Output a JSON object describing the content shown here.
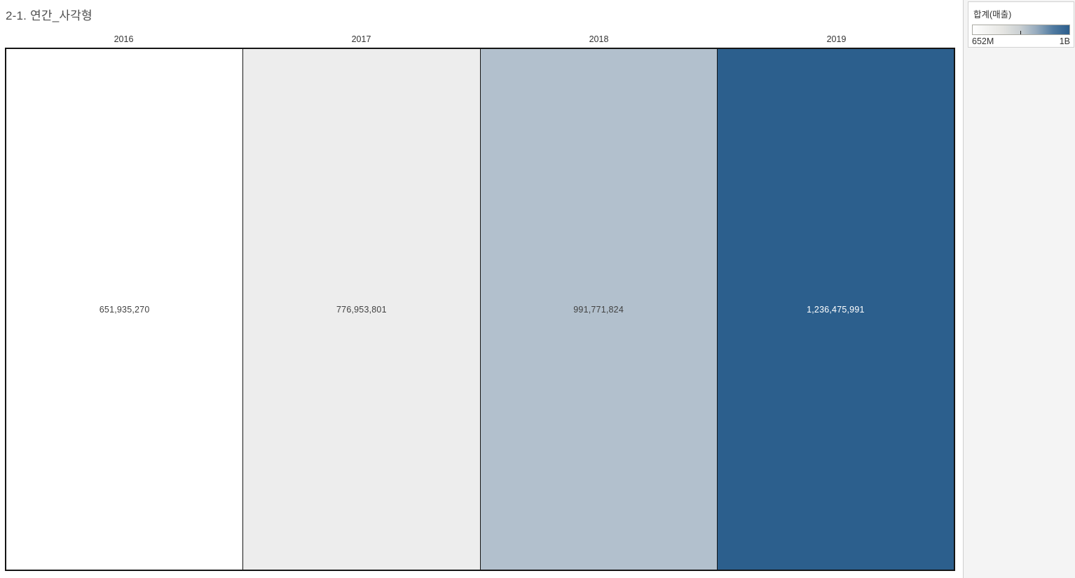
{
  "title": "2-1. 연간_사각형",
  "chart_data": {
    "type": "heatmap",
    "title": "2-1. 연간_사각형",
    "categories": [
      "2016",
      "2017",
      "2018",
      "2019"
    ],
    "values": [
      651935270,
      776953801,
      991771824,
      1236475991
    ],
    "value_labels": [
      "651,935,270",
      "776,953,801",
      "991,771,824",
      "1,236,475,991"
    ],
    "series_name": "합계(매출)",
    "cell_colors": [
      "#ffffff",
      "#ededed",
      "#b2c0cd",
      "#2c5f8d"
    ],
    "label_colors": [
      "#424242",
      "#424242",
      "#424242",
      "#ffffff"
    ],
    "color_scale": {
      "min": 651935270,
      "max": 1236475991,
      "min_color": "#ffffff",
      "max_color": "#2b5d8c"
    },
    "legend_position": "right",
    "grid": false
  },
  "legend": {
    "title": "합계(매출)",
    "min_label": "652M",
    "max_label": "1B",
    "tick_position_pct": 49
  }
}
